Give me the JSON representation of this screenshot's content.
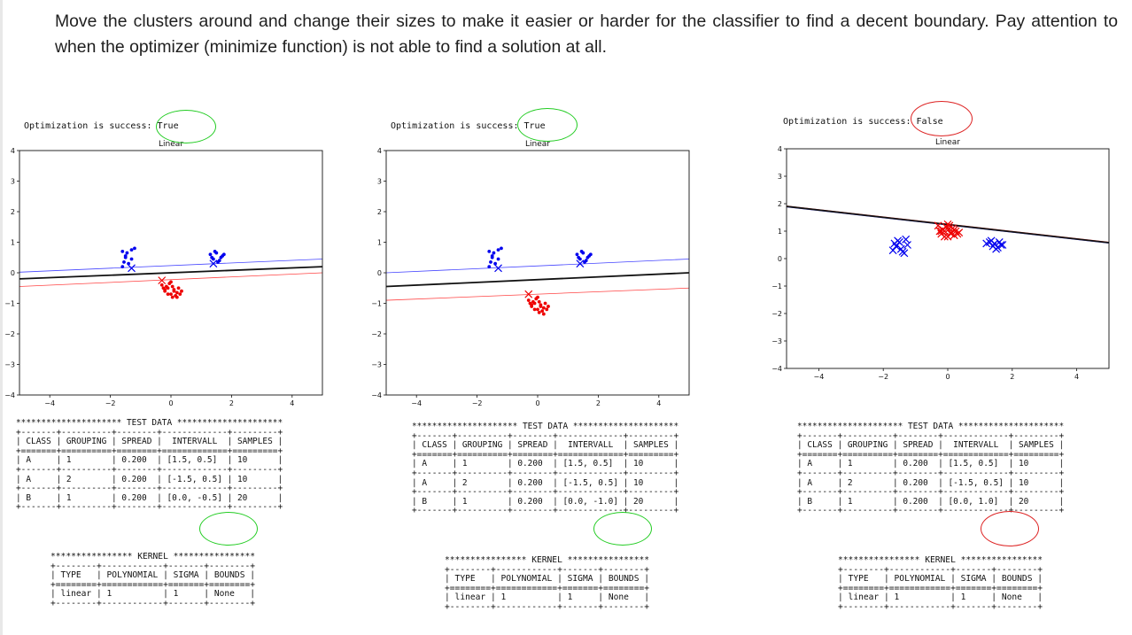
{
  "intro_text": "Move the clusters around and change their sizes to make it easier or harder for the classifier to find a decent boundary. Pay attention to when the optimizer (minimize function) is not able to find a solution at all.",
  "colors": {
    "class_a": "#0000ee",
    "class_b": "#ee0000",
    "ok_circle": "#22cc22",
    "fail_circle": "#dd2222"
  },
  "panels": [
    {
      "status": "Optimization is success: True",
      "plot_title": "Linear",
      "y_ticks": [
        "4",
        "3",
        "2",
        "1",
        "0",
        "−1",
        "−2",
        "−3",
        "−4"
      ],
      "x_ticks": [
        "−4",
        "−2",
        "0",
        "2",
        "4"
      ],
      "test_table": "********************* TEST DATA *********************\n+-------+----------+--------+-------------+---------+\n| CLASS | GROUPING | SPREAD |  INTERVALL  | SAMPLES |\n+=======+==========+========+=============+=========+\n| A     | 1        | 0.200  | [1.5, 0.5]  | 10      |\n+-------+----------+--------+-------------+---------+\n| A     | 2        | 0.200  | [-1.5, 0.5] | 10      |\n+-------+----------+--------+-------------+---------+\n| B     | 1        | 0.200  | [0.0, -0.5] | 20      |\n+-------+----------+--------+-------------+---------+",
      "kernel_table": "**************** KERNEL ****************\n+--------+------------+-------+--------+\n| TYPE   | POLYNOMIAL | SIGMA | BOUNDS |\n+========+============+=======+========+\n| linear | 1          | 1     | None   |\n+--------+------------+-------+--------+"
    },
    {
      "status": "Optimization is success: True",
      "plot_title": "Linear",
      "y_ticks": [
        "4",
        "3",
        "2",
        "1",
        "0",
        "−1",
        "−2",
        "−3",
        "−4"
      ],
      "x_ticks": [
        "−4",
        "−2",
        "0",
        "2",
        "4"
      ],
      "test_table": "********************* TEST DATA *********************\n+-------+----------+--------+-------------+---------+\n| CLASS | GROUPING | SPREAD |  INTERVALL  | SAMPLES |\n+=======+==========+========+=============+=========+\n| A     | 1        | 0.200  | [1.5, 0.5]  | 10      |\n+-------+----------+--------+-------------+---------+\n| A     | 2        | 0.200  | [-1.5, 0.5] | 10      |\n+-------+----------+--------+-------------+---------+\n| B     | 1        | 0.200  | [0.0, -1.0] | 20      |\n+-------+----------+--------+-------------+---------+",
      "kernel_table": "**************** KERNEL ****************\n+--------+------------+-------+--------+\n| TYPE   | POLYNOMIAL | SIGMA | BOUNDS |\n+========+============+=======+========+\n| linear | 1          | 1     | None   |\n+--------+------------+-------+--------+"
    },
    {
      "status": "Optimization is success: False",
      "plot_title": "Linear",
      "y_ticks": [
        "4",
        "3",
        "2",
        "1",
        "0",
        "−1",
        "−2",
        "−3",
        "−4"
      ],
      "x_ticks": [
        "−4",
        "−2",
        "0",
        "2",
        "4"
      ],
      "test_table": "********************* TEST DATA *********************\n+-------+----------+--------+-------------+---------+\n| CLASS | GROUPING | SPREAD |  INTERVALL  | SAMPLES |\n+=======+==========+========+=============+=========+\n| A     | 1        | 0.200  | [1.5, 0.5]  | 10      |\n+-------+----------+--------+-------------+---------+\n| A     | 2        | 0.200  | [-1.5, 0.5] | 10      |\n+-------+----------+--------+-------------+---------+\n| B     | 1        | 0.200  | [0.0, 1.0]  | 20      |\n+-------+----------+--------+-------------+---------+",
      "kernel_table": "**************** KERNEL ****************\n+--------+------------+-------+--------+\n| TYPE   | POLYNOMIAL | SIGMA | BOUNDS |\n+========+============+=======+========+\n| linear | 1          | 1     | None   |\n+--------+------------+-------+--------+"
    }
  ],
  "chart_data": [
    {
      "type": "scatter",
      "title": "Linear",
      "xlim": [
        -5,
        5
      ],
      "ylim": [
        -4,
        4
      ],
      "series": [
        {
          "class": "A",
          "marker": "dot",
          "x": [
            -1.6,
            -1.5,
            -1.3,
            -1.4,
            -1.2,
            -1.6,
            -1.5,
            -1.3,
            -1.45,
            -1.55
          ],
          "y": [
            0.7,
            0.5,
            0.75,
            0.3,
            0.8,
            0.2,
            0.55,
            0.45,
            0.65,
            0.35
          ]
        },
        {
          "class": "A",
          "marker": "dot",
          "x": [
            1.3,
            1.5,
            1.7,
            1.4,
            1.6,
            1.45,
            1.65,
            1.35,
            1.55,
            1.75
          ],
          "y": [
            0.6,
            0.65,
            0.55,
            0.45,
            0.4,
            0.7,
            0.5,
            0.5,
            0.35,
            0.6
          ]
        },
        {
          "class": "B",
          "marker": "dot",
          "x": [
            -0.3,
            -0.1,
            0.1,
            0.2,
            -0.2,
            0.0,
            0.15,
            -0.15,
            0.3,
            0.05,
            -0.05,
            0.25,
            -0.25,
            0.1,
            0.0,
            0.35,
            -0.1,
            0.2,
            0.05,
            -0.2
          ],
          "y": [
            -0.4,
            -0.5,
            -0.55,
            -0.65,
            -0.6,
            -0.7,
            -0.75,
            -0.45,
            -0.7,
            -0.8,
            -0.35,
            -0.5,
            -0.5,
            -0.6,
            -0.3,
            -0.6,
            -0.7,
            -0.8,
            -0.45,
            -0.55
          ]
        },
        {
          "class": "A",
          "marker": "x",
          "x": [
            -1.3,
            1.4
          ],
          "y": [
            0.15,
            0.3
          ]
        },
        {
          "class": "B",
          "marker": "x",
          "x": [
            -0.3
          ],
          "y": [
            -0.25
          ]
        }
      ],
      "lines": [
        {
          "role": "boundary",
          "y_at_xmin": -0.2,
          "y_at_xmax": 0.2
        },
        {
          "role": "class_a_margin",
          "y_at_xmin": 0.02,
          "y_at_xmax": 0.45
        },
        {
          "role": "class_b_margin",
          "y_at_xmin": -0.45,
          "y_at_xmax": 0.0
        }
      ]
    },
    {
      "type": "scatter",
      "title": "Linear",
      "xlim": [
        -5,
        5
      ],
      "ylim": [
        -4,
        4
      ],
      "series": [
        {
          "class": "A",
          "marker": "dot",
          "x": [
            -1.6,
            -1.5,
            -1.3,
            -1.4,
            -1.2,
            -1.6,
            -1.5,
            -1.3,
            -1.45,
            -1.55
          ],
          "y": [
            0.7,
            0.5,
            0.75,
            0.3,
            0.8,
            0.2,
            0.55,
            0.45,
            0.65,
            0.35
          ]
        },
        {
          "class": "A",
          "marker": "dot",
          "x": [
            1.3,
            1.5,
            1.7,
            1.4,
            1.6,
            1.45,
            1.65,
            1.35,
            1.55,
            1.75
          ],
          "y": [
            0.6,
            0.65,
            0.55,
            0.45,
            0.4,
            0.7,
            0.5,
            0.5,
            0.35,
            0.6
          ]
        },
        {
          "class": "B",
          "marker": "dot",
          "x": [
            -0.3,
            -0.1,
            0.1,
            0.2,
            -0.2,
            0.0,
            0.15,
            -0.15,
            0.3,
            0.05,
            -0.05,
            0.25,
            -0.25,
            0.1,
            0.0,
            0.35,
            -0.1,
            0.2,
            0.05,
            -0.2
          ],
          "y": [
            -0.9,
            -1.0,
            -1.05,
            -1.15,
            -1.1,
            -1.2,
            -1.25,
            -0.95,
            -1.2,
            -1.3,
            -0.85,
            -1.0,
            -1.0,
            -1.1,
            -0.8,
            -1.1,
            -1.2,
            -1.35,
            -0.95,
            -1.05
          ]
        },
        {
          "class": "A",
          "marker": "x",
          "x": [
            -1.3,
            1.4
          ],
          "y": [
            0.15,
            0.3
          ]
        },
        {
          "class": "B",
          "marker": "x",
          "x": [
            -0.3
          ],
          "y": [
            -0.7
          ]
        }
      ],
      "lines": [
        {
          "role": "boundary",
          "y_at_xmin": -0.45,
          "y_at_xmax": 0.0
        },
        {
          "role": "class_a_margin",
          "y_at_xmin": 0.0,
          "y_at_xmax": 0.45
        },
        {
          "role": "class_b_margin",
          "y_at_xmin": -0.9,
          "y_at_xmax": -0.5
        }
      ]
    },
    {
      "type": "scatter",
      "title": "Linear",
      "xlim": [
        -5,
        5
      ],
      "ylim": [
        -4,
        4
      ],
      "series": [
        {
          "class": "A",
          "marker": "x",
          "x": [
            -1.7,
            -1.5,
            -1.3,
            -1.6,
            -1.4,
            -1.55,
            -1.25,
            -1.45,
            -1.65,
            -1.35
          ],
          "y": [
            0.3,
            0.6,
            0.7,
            0.45,
            0.25,
            0.65,
            0.5,
            0.35,
            0.55,
            0.2
          ]
        },
        {
          "class": "A",
          "marker": "x",
          "x": [
            1.2,
            1.4,
            1.6,
            1.5,
            1.7,
            1.35,
            1.55,
            1.45,
            1.65,
            1.3
          ],
          "y": [
            0.55,
            0.45,
            0.6,
            0.35,
            0.5,
            0.65,
            0.4,
            0.55,
            0.5,
            0.6
          ]
        },
        {
          "class": "B",
          "marker": "x",
          "x": [
            -0.3,
            -0.1,
            0.1,
            0.2,
            -0.2,
            0.0,
            0.15,
            -0.15,
            0.3,
            0.05,
            -0.05,
            0.25,
            -0.25,
            0.1,
            0.0,
            0.35,
            -0.1,
            0.2,
            0.05,
            -0.2
          ],
          "y": [
            1.2,
            1.0,
            0.95,
            0.85,
            0.9,
            0.8,
            1.1,
            1.05,
            0.9,
            1.2,
            1.15,
            1.0,
            1.0,
            0.9,
            1.25,
            0.95,
            0.8,
            1.05,
            1.1,
            1.0
          ]
        }
      ],
      "lines": [
        {
          "role": "class_b_margin",
          "y_at_xmin": 1.92,
          "y_at_xmax": 0.6
        },
        {
          "role": "class_a_margin",
          "y_at_xmin": 1.88,
          "y_at_xmax": 0.56
        },
        {
          "role": "boundary",
          "y_at_xmin": 1.9,
          "y_at_xmax": 0.58
        }
      ]
    }
  ]
}
